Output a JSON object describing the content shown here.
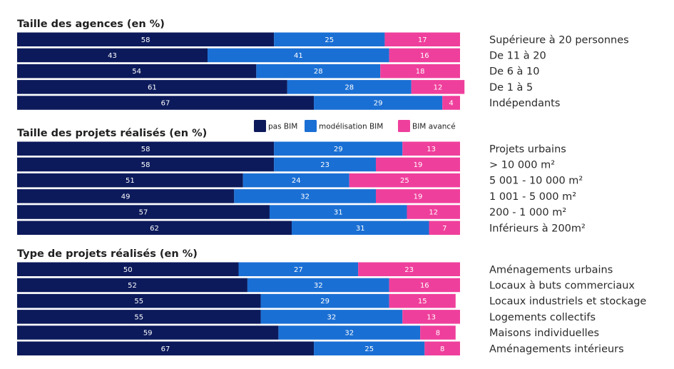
{
  "chart_data": [
    {
      "type": "bar",
      "orientation": "horizontal",
      "stacked": true,
      "title": "Taille des agences (en %)",
      "categories": [
        "Supérieure à 20 personnes",
        "De 11 à 20",
        "De 6 à 10",
        "De 1 à 5",
        "Indépendants"
      ],
      "series": [
        {
          "name": "pas BIM",
          "values": [
            58,
            43,
            54,
            61,
            67
          ]
        },
        {
          "name": "modélisation BIM",
          "values": [
            25,
            41,
            28,
            28,
            29
          ]
        },
        {
          "name": "BIM avancé",
          "values": [
            17,
            16,
            18,
            12,
            4
          ]
        }
      ],
      "xlim": [
        0,
        100
      ]
    },
    {
      "type": "bar",
      "orientation": "horizontal",
      "stacked": true,
      "title": "Taille des projets réalisés (en %)",
      "categories": [
        "Projets urbains",
        "> 10 000 m²",
        "5 001 - 10 000 m²",
        "1 001 - 5 000 m²",
        "200 - 1 000 m²",
        "Inférieurs à 200m²"
      ],
      "series": [
        {
          "name": "pas BIM",
          "values": [
            58,
            58,
            51,
            49,
            57,
            62
          ]
        },
        {
          "name": "modélisation BIM",
          "values": [
            29,
            23,
            24,
            32,
            31,
            31
          ]
        },
        {
          "name": "BIM avancé",
          "values": [
            13,
            19,
            25,
            19,
            12,
            7
          ]
        }
      ],
      "xlim": [
        0,
        100
      ]
    },
    {
      "type": "bar",
      "orientation": "horizontal",
      "stacked": true,
      "title": "Type de projets réalisés (en %)",
      "categories": [
        "Aménagements urbains",
        "Locaux à buts commerciaux",
        "Locaux industriels et stockage",
        "Logements collectifs",
        "Maisons individuelles",
        "Aménagements intérieurs"
      ],
      "series": [
        {
          "name": "pas BIM",
          "values": [
            50,
            52,
            55,
            55,
            59,
            67
          ]
        },
        {
          "name": "modélisation BIM",
          "values": [
            27,
            32,
            29,
            32,
            32,
            25
          ]
        },
        {
          "name": "BIM avancé",
          "values": [
            23,
            16,
            15,
            13,
            8,
            8
          ]
        }
      ],
      "xlim": [
        0,
        100
      ]
    }
  ],
  "legend": {
    "position": "top-right",
    "items": [
      {
        "label": "pas BIM",
        "color": "#0c1a5b"
      },
      {
        "label": "modélisation BIM",
        "color": "#1a6fd4"
      },
      {
        "label": "BIM avancé",
        "color": "#ef3f9c"
      }
    ]
  }
}
